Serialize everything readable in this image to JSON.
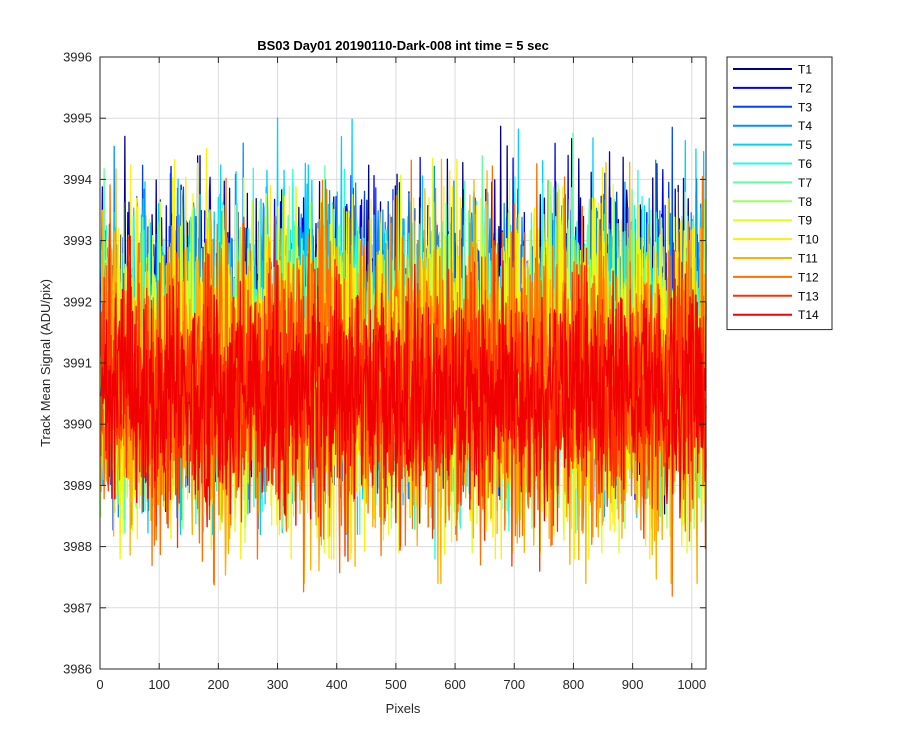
{
  "chart_data": {
    "type": "line",
    "title": "BS03 Day01 20190110-Dark-008 int time = 5 sec",
    "xlabel": "Pixels",
    "ylabel": "Track Mean Signal (ADU/pix)",
    "xlim": [
      0,
      1024
    ],
    "ylim": [
      3986,
      3996
    ],
    "xticks": [
      0,
      100,
      200,
      300,
      400,
      500,
      600,
      700,
      800,
      900,
      1000
    ],
    "yticks": [
      3986,
      3987,
      3988,
      3989,
      3990,
      3991,
      3992,
      3993,
      3994,
      3995,
      3996
    ],
    "grid": true,
    "legend_position": "outside-top-right",
    "x_points": 1024,
    "series": [
      {
        "name": "T1",
        "color": "#00008F",
        "mean": 3991.6,
        "approx_min": 3987.8,
        "approx_max": 3995.6
      },
      {
        "name": "T2",
        "color": "#0000EF",
        "mean": 3991.5,
        "approx_min": 3987.9,
        "approx_max": 3995.2
      },
      {
        "name": "T3",
        "color": "#0040FF",
        "mean": 3991.4,
        "approx_min": 3988.0,
        "approx_max": 3995.0
      },
      {
        "name": "T4",
        "color": "#0090FF",
        "mean": 3991.3,
        "approx_min": 3988.0,
        "approx_max": 3995.2
      },
      {
        "name": "T5",
        "color": "#00D0FF",
        "mean": 3991.2,
        "approx_min": 3988.2,
        "approx_max": 3995.7
      },
      {
        "name": "T6",
        "color": "#20FFDF",
        "mean": 3991.1,
        "approx_min": 3987.3,
        "approx_max": 3995.0
      },
      {
        "name": "T7",
        "color": "#60FF9F",
        "mean": 3991.0,
        "approx_min": 3988.2,
        "approx_max": 3995.0
      },
      {
        "name": "T8",
        "color": "#9FFF60",
        "mean": 3990.9,
        "approx_min": 3988.3,
        "approx_max": 3995.0
      },
      {
        "name": "T9",
        "color": "#DFFF20",
        "mean": 3990.9,
        "approx_min": 3987.9,
        "approx_max": 3995.3
      },
      {
        "name": "T10",
        "color": "#FFEF00",
        "mean": 3990.8,
        "approx_min": 3987.8,
        "approx_max": 3995.3
      },
      {
        "name": "T11",
        "color": "#FFAF00",
        "mean": 3990.7,
        "approx_min": 3987.4,
        "approx_max": 3995.0
      },
      {
        "name": "T12",
        "color": "#FF7000",
        "mean": 3990.7,
        "approx_min": 3986.6,
        "approx_max": 3995.0
      },
      {
        "name": "T13",
        "color": "#FF3000",
        "mean": 3990.6,
        "approx_min": 3987.6,
        "approx_max": 3994.0
      },
      {
        "name": "T14",
        "color": "#F00000",
        "mean": 3990.5,
        "approx_min": 3987.5,
        "approx_max": 3993.2
      }
    ]
  }
}
